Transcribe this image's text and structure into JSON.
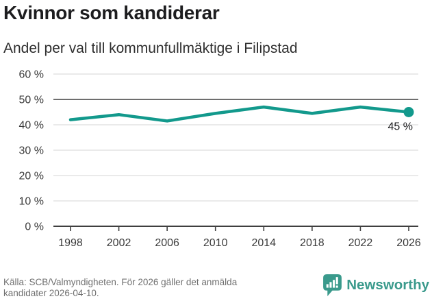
{
  "chart_data": {
    "type": "line",
    "title": "Kvinnor som kandiderar",
    "subtitle": "Andel per val till kommunfullmäktige i Filipstad",
    "x": [
      "1998",
      "2002",
      "2006",
      "2010",
      "2014",
      "2018",
      "2022",
      "2026"
    ],
    "values": [
      42,
      44,
      41.5,
      44.5,
      47,
      44.5,
      47,
      45
    ],
    "unit": "%",
    "ylim": [
      0,
      60
    ],
    "y_ticks": [
      0,
      10,
      20,
      30,
      40,
      50,
      60
    ],
    "y_tick_suffix": " %",
    "highlight_gridline": 50,
    "end_label": "45 %",
    "grid": true,
    "legend": "none"
  },
  "colors": {
    "line": "#12998c",
    "grid": "#dedede",
    "grid_highlight": "#6e6e6e",
    "axis": "#3f3f3f",
    "tick_text": "#3b3b3b",
    "title_text": "#1d1d1f",
    "footer_text": "#6f6f6f",
    "brand": "#3a9a8c"
  },
  "footer": {
    "source_line1": "Källa: SCB/Valmyndigheten. För 2026 gäller det anmälda",
    "source_line2": "kandidater 2026-04-10.",
    "brand_name": "Newsworthy"
  }
}
